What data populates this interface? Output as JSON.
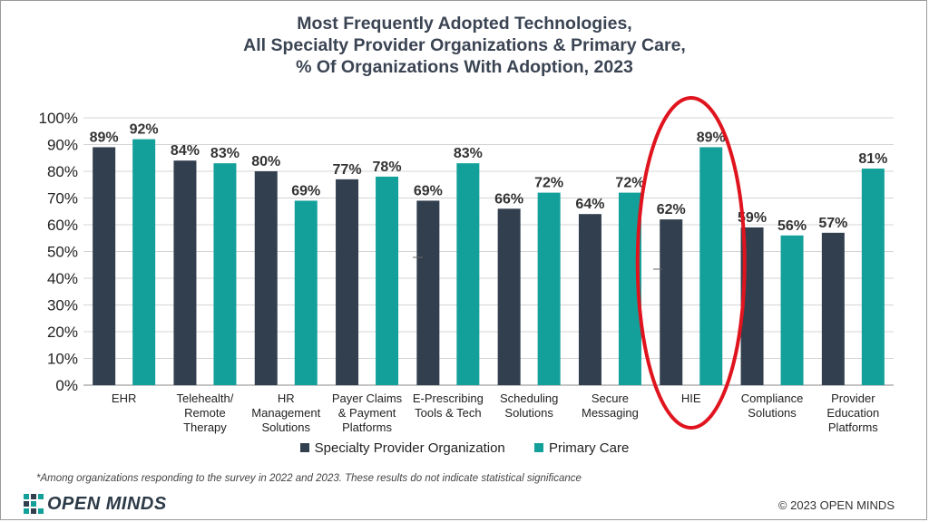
{
  "title_lines": [
    "Most Frequently Adopted Technologies,",
    "All Specialty Provider Organizations & Primary Care,",
    "% Of Organizations With Adoption, 2023"
  ],
  "footnote": "*Among organizations responding to the survey in 2022 and 2023. These results do not indicate statistical significance",
  "logo_text": "OPEN MINDS",
  "copyright": "© 2023 OPEN MINDS",
  "colors": {
    "specialty": "#323f4e",
    "primary": "#13a09a",
    "highlight": "#e0141e",
    "grid": "#d4d4d4"
  },
  "chart_data": {
    "type": "bar",
    "title": "Most Frequently Adopted Technologies, All Specialty Provider Organizations & Primary Care, % Of Organizations With Adoption, 2023",
    "categories": [
      [
        "EHR"
      ],
      [
        "Telehealth/",
        "Remote",
        "Therapy"
      ],
      [
        "HR",
        "Management",
        "Solutions"
      ],
      [
        "Payer Claims",
        "& Payment",
        "Platforms"
      ],
      [
        "E-Prescribing",
        "Tools & Tech"
      ],
      [
        "Scheduling",
        "Solutions"
      ],
      [
        "Secure",
        "Messaging"
      ],
      [
        "HIE"
      ],
      [
        "Compliance",
        "Solutions"
      ],
      [
        "Provider",
        "Education",
        "Platforms"
      ]
    ],
    "series": [
      {
        "name": "Specialty Provider Organization",
        "values": [
          89,
          84,
          80,
          77,
          69,
          66,
          64,
          62,
          59,
          57
        ]
      },
      {
        "name": "Primary Care",
        "values": [
          92,
          83,
          69,
          78,
          83,
          72,
          72,
          89,
          56,
          81
        ]
      }
    ],
    "data_labels": [
      [
        "89%",
        "84%",
        "80%",
        "77%",
        "69%",
        "66%",
        "64%",
        "62%",
        "59%",
        "57%"
      ],
      [
        "92%",
        "83%",
        "69%",
        "78%",
        "83%",
        "72%",
        "72%",
        "89%",
        "56%",
        "81%"
      ]
    ],
    "ylim": [
      0,
      100
    ],
    "yticks": [
      "0%",
      "10%",
      "20%",
      "30%",
      "40%",
      "50%",
      "60%",
      "70%",
      "80%",
      "90%",
      "100%"
    ],
    "xlabel": "",
    "ylabel": "",
    "legend": "bottom",
    "annotation": "HIE highlighted with red ellipse"
  }
}
